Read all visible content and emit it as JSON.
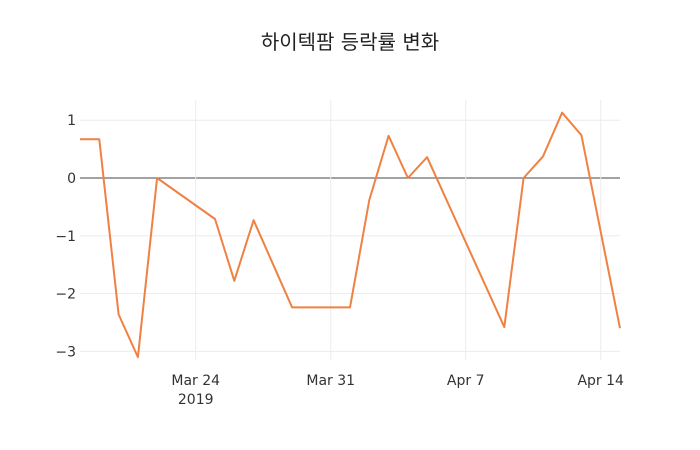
{
  "chart_data": {
    "type": "line",
    "title": "하이텍팜 등락률 변화",
    "xlabel": "",
    "ylabel": "",
    "x_ticks": [
      {
        "date": "2019-03-24",
        "label": "Mar 24",
        "sublabel": "2019"
      },
      {
        "date": "2019-03-31",
        "label": "Mar 31",
        "sublabel": ""
      },
      {
        "date": "2019-04-07",
        "label": "Apr 7",
        "sublabel": ""
      },
      {
        "date": "2019-04-14",
        "label": "Apr 14",
        "sublabel": ""
      }
    ],
    "y_ticks": [
      {
        "value": 1,
        "label": "1"
      },
      {
        "value": 0,
        "label": "0"
      },
      {
        "value": -1,
        "label": "−1"
      },
      {
        "value": -2,
        "label": "−2"
      },
      {
        "value": -3,
        "label": "−3"
      }
    ],
    "xlim": [
      "2019-03-18",
      "2019-04-15"
    ],
    "ylim": [
      -3.15,
      1.35
    ],
    "series": [
      {
        "name": "등락률",
        "color": "#ef8142",
        "x": [
          "2019-03-18",
          "2019-03-19",
          "2019-03-20",
          "2019-03-21",
          "2019-03-22",
          "2019-03-25",
          "2019-03-26",
          "2019-03-27",
          "2019-03-29",
          "2019-04-01",
          "2019-04-02",
          "2019-04-03",
          "2019-04-04",
          "2019-04-05",
          "2019-04-09",
          "2019-04-10",
          "2019-04-11",
          "2019-04-12",
          "2019-04-13",
          "2019-04-15"
        ],
        "values": [
          0.67,
          0.67,
          -2.36,
          -3.1,
          0.0,
          -0.71,
          -1.78,
          -0.73,
          -2.24,
          -2.24,
          -0.38,
          0.73,
          0.0,
          0.36,
          -2.58,
          0.0,
          0.37,
          1.13,
          0.74,
          -2.6
        ]
      }
    ]
  }
}
